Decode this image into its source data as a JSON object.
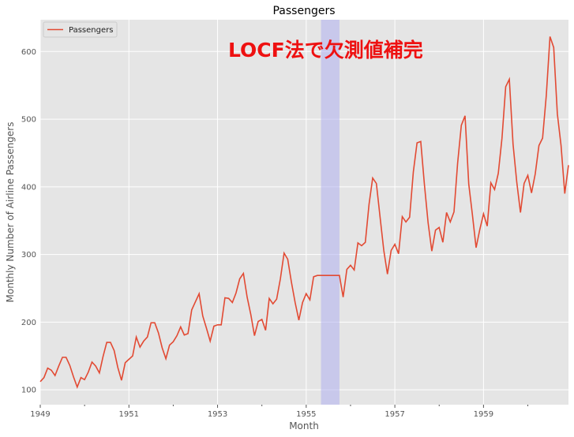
{
  "chart_data": {
    "type": "line",
    "title": "Passengers",
    "xlabel": "Month",
    "ylabel": "Monthly Number of Airline Passengers",
    "annotation": "LOCF法で欠測値補完",
    "legend": {
      "entries": [
        "Passengers"
      ],
      "placement": "top-left"
    },
    "grid": true,
    "xlim": [
      1949.0,
      1960.917
    ],
    "ylim": [
      78,
      647
    ],
    "x_ticks": [
      "1949",
      "1951",
      "1953",
      "1955",
      "1957",
      "1959"
    ],
    "x_tick_values": [
      1949,
      1951,
      1953,
      1955,
      1957,
      1959
    ],
    "x_minor_tick_values": [
      1950,
      1952,
      1954,
      1956,
      1958,
      1960
    ],
    "y_ticks": [
      "100",
      "200",
      "300",
      "400",
      "500",
      "600"
    ],
    "y_tick_values": [
      100,
      200,
      300,
      400,
      500,
      600
    ],
    "highlight_span": {
      "start": 1955.333,
      "end": 1955.75,
      "color": "#b0b0f0"
    },
    "series": [
      {
        "name": "Passengers",
        "color": "#e24a33",
        "start": "1949-01",
        "frequency": "monthly",
        "values": [
          112,
          118,
          132,
          129,
          121,
          135,
          148,
          148,
          136,
          119,
          104,
          118,
          115,
          126,
          141,
          135,
          125,
          149,
          170,
          170,
          158,
          133,
          114,
          140,
          145,
          150,
          178,
          163,
          172,
          178,
          199,
          199,
          184,
          162,
          146,
          166,
          171,
          180,
          193,
          181,
          183,
          218,
          230,
          242,
          209,
          191,
          172,
          194,
          196,
          196,
          236,
          235,
          229,
          243,
          264,
          272,
          237,
          211,
          180,
          201,
          204,
          188,
          235,
          227,
          234,
          264,
          302,
          293,
          259,
          229,
          203,
          229,
          242,
          233,
          267,
          269,
          269,
          269,
          269,
          269,
          269,
          269,
          237,
          278,
          284,
          277,
          317,
          313,
          318,
          374,
          413,
          405,
          355,
          306,
          271,
          306,
          315,
          301,
          356,
          348,
          355,
          422,
          465,
          467,
          404,
          347,
          305,
          336,
          340,
          318,
          362,
          348,
          363,
          435,
          491,
          505,
          404,
          359,
          310,
          337,
          360,
          342,
          406,
          396,
          420,
          472,
          548,
          559,
          463,
          407,
          362,
          405,
          417,
          391,
          419,
          461,
          472,
          535,
          622,
          606,
          508,
          461,
          390,
          432
        ]
      }
    ]
  }
}
